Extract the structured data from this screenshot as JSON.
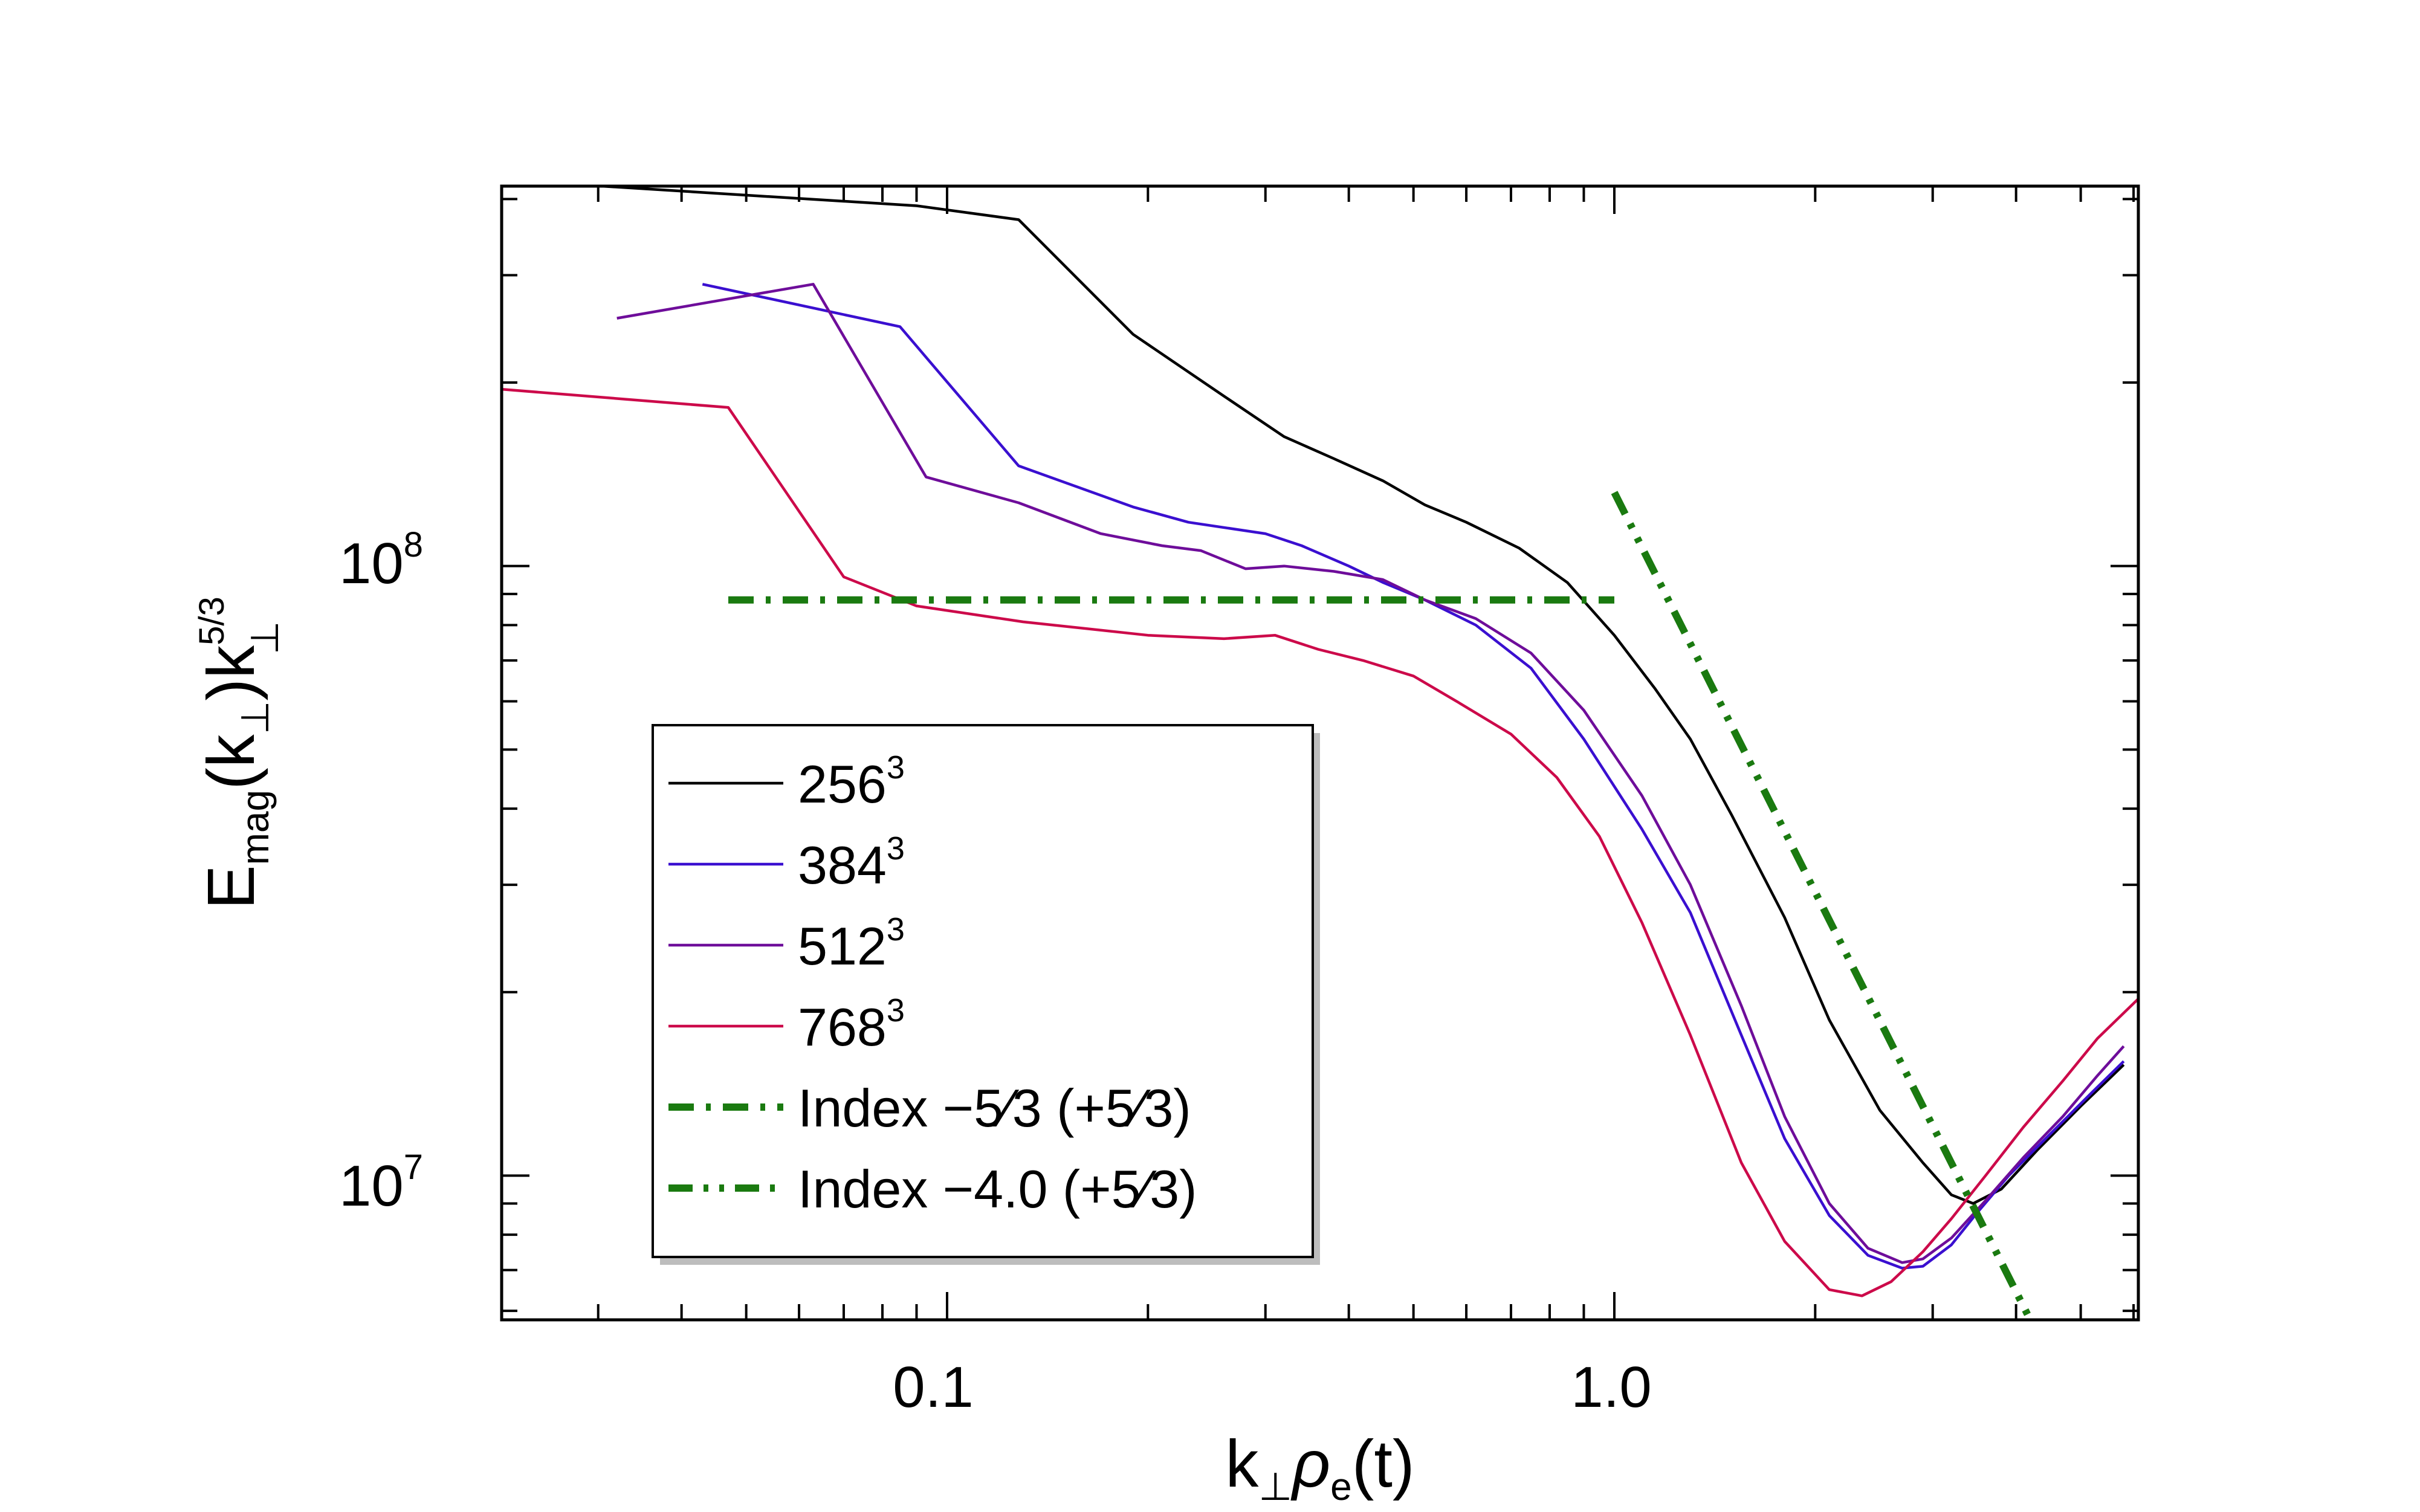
{
  "chart_data": {
    "type": "line",
    "title": "",
    "xlabel": {
      "base": "k",
      "sub1": "⊥",
      "rho": "ρ",
      "sub2": "e",
      "tail": "(t)"
    },
    "ylabel": {
      "base": "E",
      "sub1": "mag",
      "mid": "(k",
      "sub2": "⊥",
      "close": ")k",
      "sup": "5/3",
      "sub3": "⊥"
    },
    "x_scale": "log",
    "y_scale": "log",
    "xlim": [
      0.0215,
      6.1
    ],
    "ylim": [
      5800000,
      420000000
    ],
    "xtick_labels": [
      {
        "value": 0.1,
        "label": "0.1"
      },
      {
        "value": 1.0,
        "label": "1.0"
      }
    ],
    "ytick_labels": [
      {
        "value": 10000000,
        "base": "10",
        "exp": "7"
      },
      {
        "value": 100000000,
        "base": "10",
        "exp": "8"
      }
    ],
    "legend_position": "lower-left",
    "series": [
      {
        "name": "256",
        "sup": "3",
        "color": "#000000",
        "dash": "solid",
        "x": [
          0.0215,
          0.09,
          0.128,
          0.19,
          0.26,
          0.32,
          0.38,
          0.45,
          0.52,
          0.6,
          0.72,
          0.85,
          1.0,
          1.15,
          1.3,
          1.5,
          1.8,
          2.1,
          2.5,
          2.9,
          3.2,
          3.45,
          3.8,
          4.3,
          5.0,
          5.8
        ],
        "y": [
          430000000,
          390000000,
          370000000,
          240000000,
          190000000,
          163000000,
          150000000,
          138000000,
          126000000,
          118000000,
          107000000,
          94000000,
          77000000,
          63000000,
          52000000,
          39000000,
          26500000,
          18000000,
          12800000,
          10500000,
          9300000,
          9000000,
          9500000,
          11000000,
          13000000,
          15200000
        ]
      },
      {
        "name": "384",
        "sup": "3",
        "color": "#3a0fd0",
        "dash": "solid",
        "x": [
          0.043,
          0.063,
          0.085,
          0.128,
          0.19,
          0.23,
          0.3,
          0.34,
          0.4,
          0.45,
          0.52,
          0.62,
          0.75,
          0.9,
          1.1,
          1.3,
          1.55,
          1.8,
          2.1,
          2.4,
          2.7,
          2.9,
          3.2,
          3.5,
          3.9,
          4.5,
          5.2,
          5.8
        ],
        "y": [
          290000000,
          265000000,
          247000000,
          146000000,
          125000000,
          118000000,
          113000000,
          108000000,
          100000000,
          94000000,
          88000000,
          80000000,
          68000000,
          52000000,
          37000000,
          27000000,
          17000000,
          11500000,
          8600000,
          7400000,
          7050000,
          7100000,
          7700000,
          8700000,
          10000000,
          11700000,
          13700000,
          15400000
        ]
      },
      {
        "name": "512",
        "sup": "3",
        "color": "#6e0d9a",
        "dash": "solid",
        "x": [
          0.032,
          0.063,
          0.093,
          0.128,
          0.17,
          0.21,
          0.24,
          0.28,
          0.32,
          0.38,
          0.45,
          0.52,
          0.62,
          0.75,
          0.9,
          1.1,
          1.3,
          1.55,
          1.8,
          2.1,
          2.4,
          2.7,
          2.9,
          3.2,
          3.6,
          4.1,
          4.7,
          5.3,
          5.8
        ],
        "y": [
          255000000,
          290000000,
          140000000,
          127000000,
          113000000,
          108000000,
          106000000,
          99000000,
          100000000,
          98000000,
          95000000,
          88000000,
          82000000,
          72000000,
          58000000,
          42000000,
          30000000,
          19000000,
          12500000,
          9000000,
          7600000,
          7200000,
          7300000,
          7900000,
          9100000,
          10700000,
          12500000,
          14600000,
          16300000
        ]
      },
      {
        "name": "768",
        "sup": "3",
        "color": "#cc0a4a",
        "dash": "solid",
        "x": [
          0.0215,
          0.047,
          0.07,
          0.09,
          0.13,
          0.2,
          0.26,
          0.31,
          0.36,
          0.42,
          0.5,
          0.58,
          0.7,
          0.82,
          0.95,
          1.1,
          1.3,
          1.55,
          1.8,
          2.1,
          2.35,
          2.6,
          2.9,
          3.2,
          3.6,
          4.1,
          4.7,
          5.3,
          6.1
        ],
        "y": [
          195000000,
          182000000,
          96000000,
          86000000,
          81000000,
          77000000,
          76000000,
          77000000,
          73000000,
          70000000,
          66000000,
          60000000,
          53000000,
          45000000,
          36000000,
          26000000,
          17000000,
          10500000,
          7800000,
          6500000,
          6350000,
          6700000,
          7500000,
          8500000,
          10000000,
          12000000,
          14300000,
          16800000,
          19500000
        ]
      },
      {
        "name": "Index −5⁄3 (+5⁄3)",
        "color": "#1a7a10",
        "dash": "dashdot",
        "x": [
          0.047,
          1.0
        ],
        "y": [
          88000000,
          88000000
        ]
      },
      {
        "name": "Index −4.0 (+5⁄3)",
        "color": "#1a7a10",
        "dash": "dashdotdot",
        "x": [
          1.0,
          4.2
        ],
        "y": [
          132000000,
          5800000
        ]
      }
    ]
  }
}
